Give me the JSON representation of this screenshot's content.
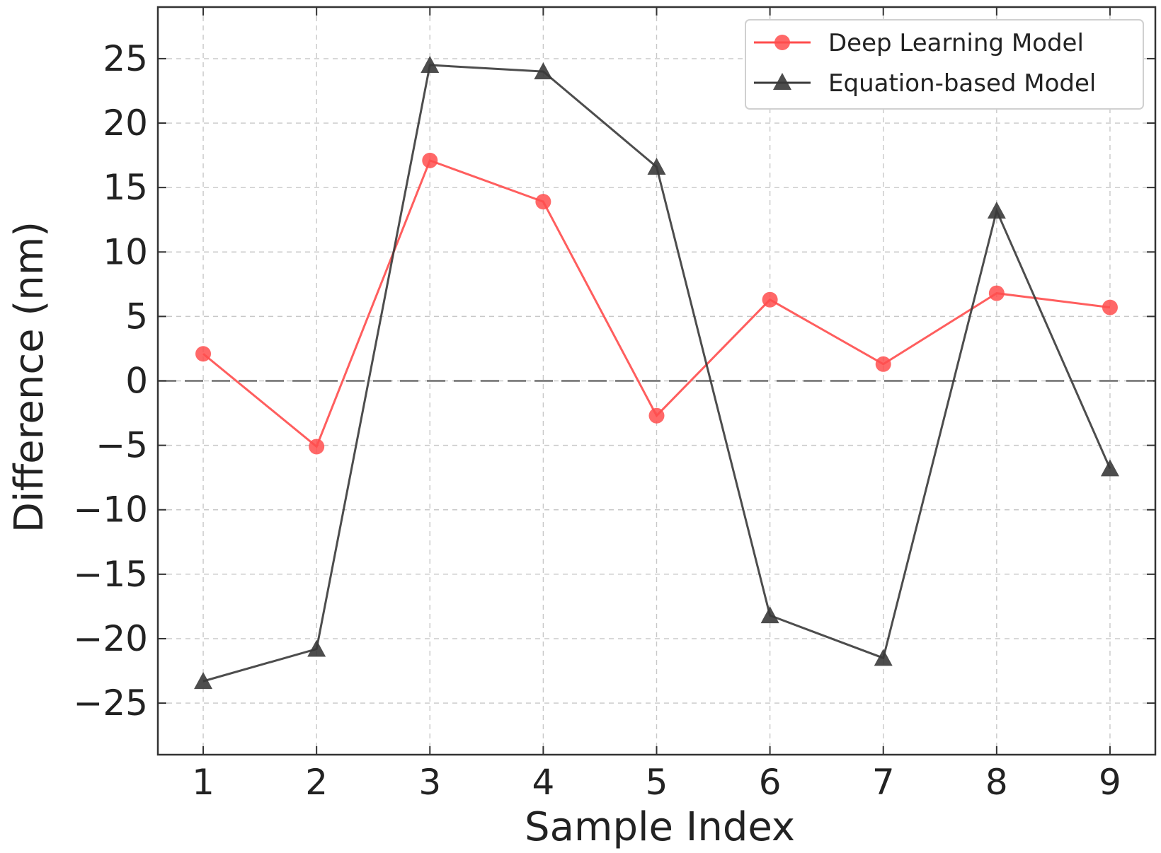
{
  "chart_data": {
    "type": "line",
    "title": "",
    "xlabel": "Sample Index",
    "ylabel": "Difference (nm)",
    "x": [
      1,
      2,
      3,
      4,
      5,
      6,
      7,
      8,
      9
    ],
    "xlim": [
      0.6,
      9.4
    ],
    "ylim": [
      -29,
      29
    ],
    "xticks": [
      1,
      2,
      3,
      4,
      5,
      6,
      7,
      8,
      9
    ],
    "yticks": [
      -25,
      -20,
      -15,
      -10,
      -5,
      0,
      5,
      10,
      15,
      20,
      25
    ],
    "grid": true,
    "reference_line": {
      "y": 0,
      "style": "dashed"
    },
    "legend_position": "top-right",
    "series": [
      {
        "name": "Deep Learning Model",
        "marker": "circle",
        "color": "#ff4d4d",
        "values": [
          2.1,
          -5.1,
          17.1,
          13.9,
          -2.7,
          6.3,
          1.3,
          6.8,
          5.7
        ]
      },
      {
        "name": "Equation-based Model",
        "marker": "triangle",
        "color": "#3a3a3a",
        "values": [
          -23.3,
          -20.8,
          24.5,
          24.0,
          16.6,
          -18.2,
          -21.5,
          13.2,
          -6.8
        ]
      }
    ]
  }
}
